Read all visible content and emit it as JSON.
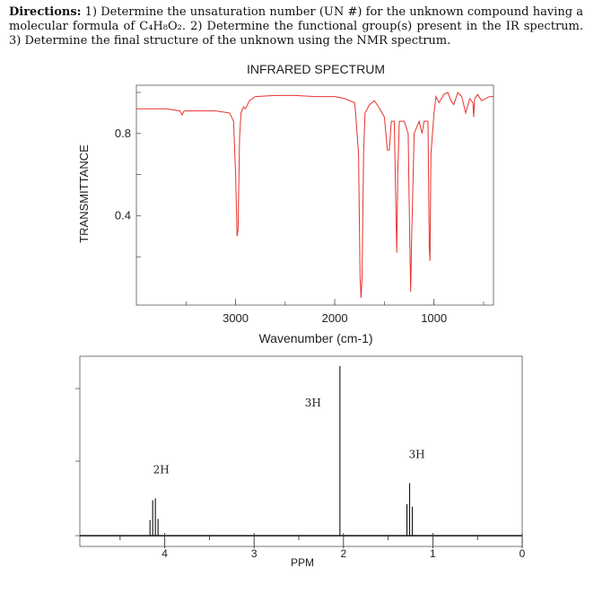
{
  "directions": {
    "label": "Directions:",
    "text": "1) Determine the unsaturation number (UN #) for the unknown compound having a molecular formula of C₄H₈O₂. 2) Determine the functional group(s) present in the IR spectrum. 3) Determine the final structure of the unknown using the NMR spectrum."
  },
  "colors": {
    "ir_trace": "#e8322e",
    "nmr_trace": "#111111",
    "frame": "#555555"
  },
  "chart_data": [
    {
      "type": "line",
      "title": "INFRARED SPECTRUM",
      "xlabel": "Wavenumber (cm-1)",
      "ylabel": "TRANSMITTANCE",
      "x_reversed": true,
      "xlim": [
        4000,
        400
      ],
      "ylim": [
        0.0,
        1.0
      ],
      "x_ticks": [
        3000,
        2000,
        1000
      ],
      "y_ticks": [
        0.8,
        0.4
      ],
      "x_tick_labels": [
        "3000",
        "2000",
        "1000"
      ],
      "y_tick_labels": [
        "0.8",
        "0.4"
      ],
      "series": [
        {
          "x": [
            4000,
            3700,
            3560,
            3540,
            3520,
            3200,
            3060,
            3020,
            3000,
            2985,
            2975,
            2960,
            2945,
            2920,
            2900,
            2880,
            2860,
            2800,
            2600,
            2400,
            2200,
            2000,
            1900,
            1800,
            1790,
            1760,
            1745,
            1735,
            1725,
            1710,
            1695,
            1650,
            1600,
            1560,
            1500,
            1470,
            1450,
            1430,
            1400,
            1390,
            1375,
            1365,
            1350,
            1300,
            1260,
            1245,
            1235,
            1225,
            1200,
            1150,
            1120,
            1100,
            1060,
            1048,
            1040,
            1030,
            1000,
            980,
            950,
            900,
            860,
            830,
            800,
            760,
            720,
            680,
            640,
            607,
            600,
            590,
            560,
            520,
            480,
            440,
            400
          ],
          "y": [
            0.92,
            0.92,
            0.91,
            0.89,
            0.91,
            0.91,
            0.9,
            0.86,
            0.6,
            0.3,
            0.33,
            0.78,
            0.9,
            0.93,
            0.92,
            0.94,
            0.96,
            0.98,
            0.985,
            0.985,
            0.98,
            0.98,
            0.97,
            0.95,
            0.9,
            0.7,
            0.1,
            0.0,
            0.1,
            0.7,
            0.9,
            0.94,
            0.96,
            0.93,
            0.88,
            0.72,
            0.72,
            0.86,
            0.86,
            0.58,
            0.22,
            0.6,
            0.86,
            0.86,
            0.8,
            0.3,
            0.03,
            0.3,
            0.8,
            0.86,
            0.8,
            0.86,
            0.86,
            0.25,
            0.18,
            0.7,
            0.9,
            0.98,
            0.95,
            0.99,
            1.0,
            0.96,
            0.94,
            1.0,
            0.98,
            0.9,
            0.97,
            0.95,
            0.88,
            0.97,
            0.99,
            0.96,
            0.97,
            0.98,
            0.98
          ]
        }
      ]
    },
    {
      "type": "line",
      "title": "",
      "xlabel": "PPM",
      "ylabel": "",
      "x_reversed": true,
      "xlim": [
        4.95,
        0
      ],
      "ylim": [
        0,
        1.0
      ],
      "x_ticks": [
        4,
        3,
        2,
        1,
        0
      ],
      "x_tick_labels": [
        "4",
        "3",
        "2",
        "1",
        "0"
      ],
      "peaks": [
        {
          "shift": 4.12,
          "multiplet": "quartet",
          "integration": "2H",
          "height": 0.22
        },
        {
          "shift": 2.04,
          "multiplet": "singlet",
          "integration": "3H",
          "height": 1.0
        },
        {
          "shift": 1.26,
          "multiplet": "triplet",
          "integration": "3H",
          "height": 0.31
        }
      ]
    }
  ]
}
